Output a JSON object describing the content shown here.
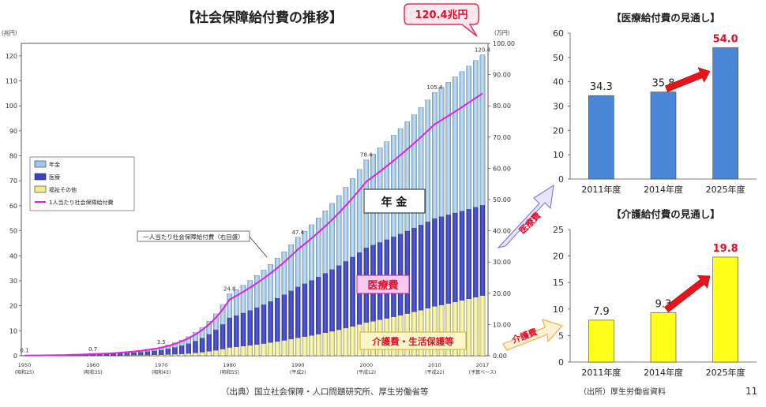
{
  "page_number": "11",
  "main": {
    "title": "【社会保障給付費の推移】",
    "callout": "120.4兆円",
    "y_left_unit": "(兆円)",
    "y_right_unit": "(万円)",
    "y_left_ticks": [
      "0",
      "10",
      "20",
      "30",
      "40",
      "50",
      "60",
      "70",
      "80",
      "90",
      "100",
      "110",
      "120"
    ],
    "y_right_ticks": [
      "0.00",
      "10.00",
      "20.00",
      "30.00",
      "40.00",
      "50.00",
      "60.00",
      "70.00",
      "80.00",
      "90.00",
      "100.00"
    ],
    "x_ticks": [
      {
        "year": "1950",
        "era": "(昭和25)"
      },
      {
        "year": "1960",
        "era": "(昭和35)"
      },
      {
        "year": "1970",
        "era": "(昭和45)"
      },
      {
        "year": "1980",
        "era": "(昭和55)"
      },
      {
        "year": "1990",
        "era": "(平成2)"
      },
      {
        "year": "2000",
        "era": "(平成12)"
      },
      {
        "year": "2010",
        "era": "(平成22)"
      },
      {
        "year": "2017",
        "era": "(予算ベース)"
      }
    ],
    "legend": [
      "年金",
      "医療",
      "福祉その他",
      "1人当たり社会保障給付費"
    ],
    "value_labels": [
      "0.1",
      "0.7",
      "3.5",
      "24.8",
      "47.4",
      "78.4",
      "105.4",
      "120.4"
    ],
    "series_labels": {
      "pension": "年 金",
      "medical": "医療費",
      "care": "介護費・生活保護等"
    },
    "per_capita_label": "一人当たり社会保障給付費（右目盛）",
    "source": "（出典）国立社会保障・人口問題研究所、厚生労働省等",
    "colors": {
      "pension": "#9ec8ea",
      "medical": "#3a43c8",
      "care": "#f2ee8c",
      "line": "#e020e0"
    }
  },
  "medical_chart": {
    "title": "【医療給付費の見通し】",
    "categories": [
      "2011年度",
      "2014年度",
      "2025年度"
    ],
    "values": [
      34.3,
      35.8,
      54.0
    ],
    "labels": [
      "34.3",
      "35.8",
      "54.0"
    ],
    "y_ticks": [
      "0",
      "10",
      "20",
      "30",
      "40",
      "50",
      "60"
    ],
    "side_label": "医療費",
    "color": "#4a86d8"
  },
  "care_chart": {
    "title": "【介護給付費の見通し】",
    "categories": [
      "2011年度",
      "2014年度",
      "2025年度"
    ],
    "values": [
      7.9,
      9.3,
      19.8
    ],
    "labels": [
      "7.9",
      "9.3",
      "19.8"
    ],
    "y_ticks": [
      "0",
      "5",
      "10",
      "15",
      "20",
      "25"
    ],
    "side_label": "介護費",
    "source": "（出所）厚生労働省資料",
    "color": "#ffff1a"
  },
  "chart_data": [
    {
      "type": "bar",
      "title": "【社会保障給付費の推移】",
      "ylabel": "(兆円)",
      "ylim": [
        0,
        125
      ],
      "y2label": "(万円)",
      "y2lim": [
        0,
        100
      ],
      "stacked": true,
      "series": [
        {
          "name": "年金"
        },
        {
          "name": "医療"
        },
        {
          "name": "福祉その他"
        }
      ],
      "line_series": {
        "name": "1人当たり社会保障給付費"
      },
      "labeled_totals": [
        {
          "x": "1950",
          "y": 0.1
        },
        {
          "x": "1960",
          "y": 0.7
        },
        {
          "x": "1970",
          "y": 3.5
        },
        {
          "x": "1980",
          "y": 24.8
        },
        {
          "x": "1990",
          "y": 47.4
        },
        {
          "x": "2000",
          "y": 78.4
        },
        {
          "x": "2010",
          "y": 105.4
        },
        {
          "x": "2017",
          "y": 120.4
        }
      ],
      "grid": false,
      "legend": "upper-left"
    },
    {
      "type": "bar",
      "title": "【医療給付費の見通し】",
      "categories": [
        "2011年度",
        "2014年度",
        "2025年度"
      ],
      "values": [
        34.3,
        35.8,
        54.0
      ],
      "ylim": [
        0,
        60
      ]
    },
    {
      "type": "bar",
      "title": "【介護給付費の見通し】",
      "categories": [
        "2011年度",
        "2014年度",
        "2025年度"
      ],
      "values": [
        7.9,
        9.3,
        19.8
      ],
      "ylim": [
        0,
        25
      ]
    }
  ]
}
